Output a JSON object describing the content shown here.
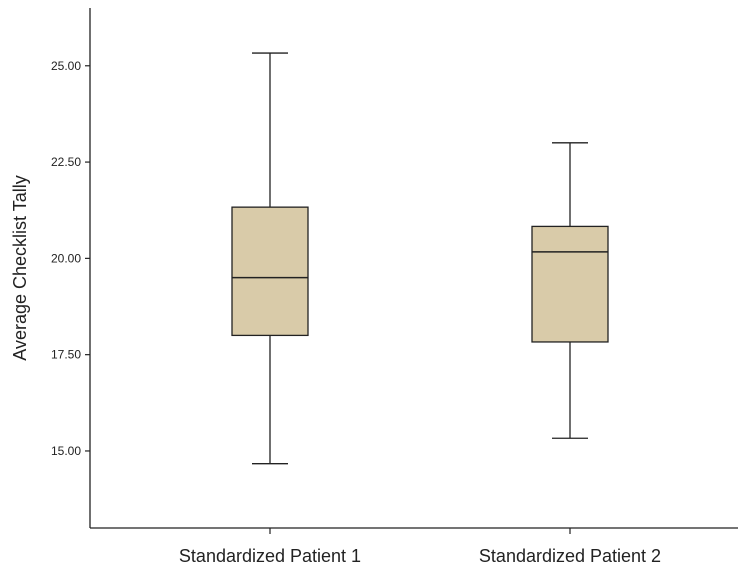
{
  "chart_data": {
    "type": "box",
    "title": "",
    "xlabel": "",
    "ylabel": "Average Checklist Tally",
    "ylim": [
      13.0,
      26.5
    ],
    "yticks": [
      15,
      17.5,
      20,
      22.5,
      25
    ],
    "ytick_labels": [
      "15.00",
      "17.50",
      "20.00",
      "22.50",
      "25.00"
    ],
    "categories": [
      "Standardized Patient 1",
      "Standardized Patient 2"
    ],
    "boxes": [
      {
        "min": 14.67,
        "q1": 18.0,
        "median": 19.5,
        "q3": 21.33,
        "max": 25.33
      },
      {
        "min": 15.33,
        "q1": 17.83,
        "median": 20.17,
        "q3": 20.83,
        "max": 23.0
      }
    ],
    "box_color": "#d9cba9",
    "line_color": "#222222",
    "grid": false,
    "legend": "none"
  }
}
